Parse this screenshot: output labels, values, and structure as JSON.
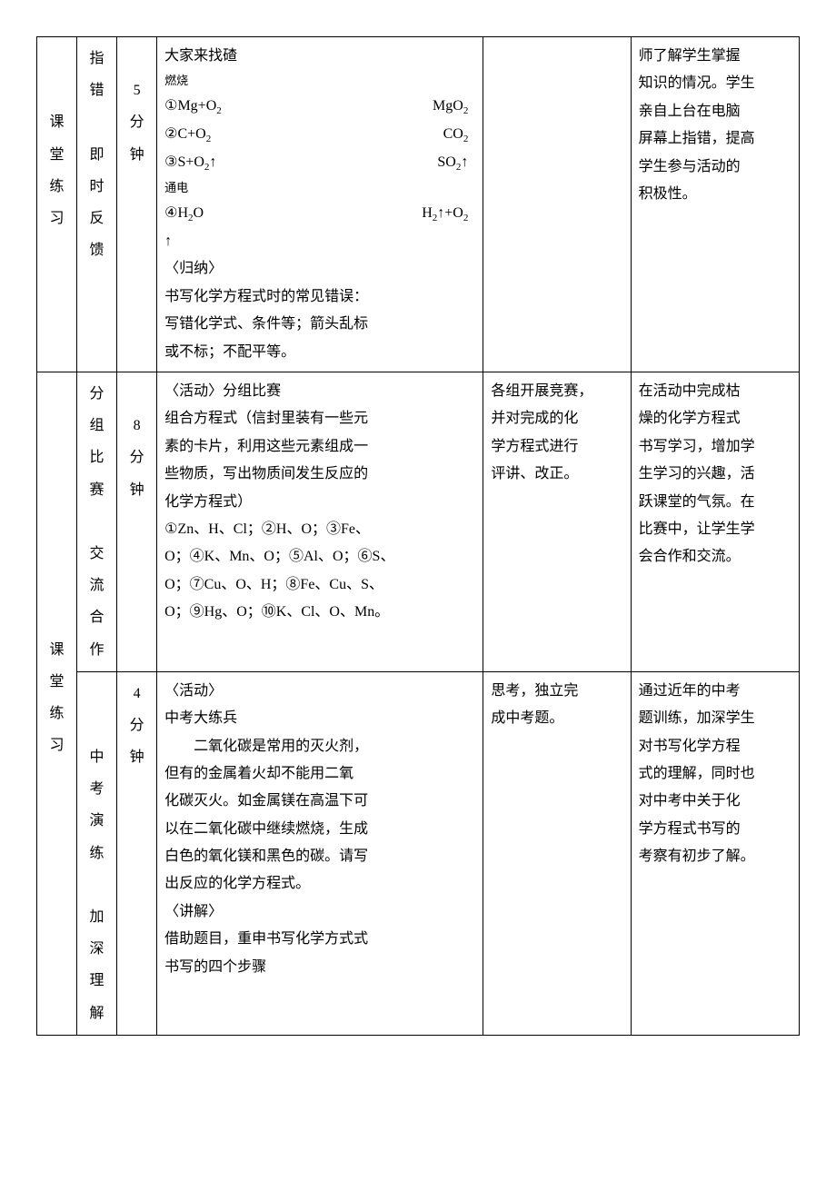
{
  "row1": {
    "sideA": [
      "课",
      "堂",
      "练",
      "习"
    ],
    "sideB": [
      "指",
      "错",
      "",
      "即",
      "时",
      "反",
      "馈"
    ],
    "time": [
      "5",
      "分",
      "钟"
    ],
    "c4_title": "大家来找碴",
    "c4_cond1": "燃烧",
    "c4_eq1_l": "①Mg+O",
    "c4_eq1_r": "MgO",
    "c4_eq2_l": "②C+O",
    "c4_eq2_r": "CO",
    "c4_eq3_l": "③S+O",
    "c4_eq3_r_a": "SO",
    "c4_cond2": "通电",
    "c4_eq4_l": "④H",
    "c4_eq4_r": "H",
    "c4_eq4_r2": "+O",
    "c4_arrow": "↑",
    "c4_sum_h": "〈归纳〉",
    "c4_sum_1": "书写化学方程式时的常见错误：",
    "c4_sum_2": "写错化学式、条件等；箭头乱标",
    "c4_sum_3": "或不标；不配平等。",
    "c6_1": "师了解学生掌握",
    "c6_2": "知识的情况。学生",
    "c6_3": "亲自上台在电脑",
    "c6_4": "屏幕上指错，提高",
    "c6_5": "学生参与活动的",
    "c6_6": "积极性。"
  },
  "row2": {
    "sideB": [
      "分",
      "组",
      "比",
      "赛",
      "",
      "交",
      "流",
      "合",
      "作"
    ],
    "time": [
      "8",
      "分",
      "钟"
    ],
    "c4_h": "〈活动〉分组比赛",
    "c4_1": "组合方程式（信封里装有一些元",
    "c4_2": "素的卡片，利用这些元素组成一",
    "c4_3": "些物质，写出物质间发生反应的",
    "c4_4": "化学方程式）",
    "c4_5": "①Zn、H、Cl；②H、O；③Fe、",
    "c4_6": "O；④K、Mn、O；⑤Al、O；⑥S、",
    "c4_7": "O；⑦Cu、O、H；⑧Fe、Cu、S、",
    "c4_8": "O；⑨Hg、O；⑩K、Cl、O、Mn。",
    "c5_1": "各组开展竞赛，",
    "c5_2": "并对完成的化",
    "c5_3": "学方程式进行",
    "c5_4": "评讲、改正。",
    "c6_1": "在活动中完成枯",
    "c6_2": "燥的化学方程式",
    "c6_3": "书写学习，增加学",
    "c6_4": "生学习的兴趣，活",
    "c6_5": "跃课堂的气氛。在",
    "c6_6": "比赛中，让学生学",
    "c6_7": "会合作和交流。"
  },
  "row3": {
    "sideA": [
      "课",
      "堂",
      "练",
      "习"
    ],
    "sideB": [
      "",
      "",
      "中",
      "考",
      "演",
      "练",
      "",
      "加",
      "深",
      "理",
      "解"
    ],
    "time": [
      "4",
      "分",
      "钟"
    ],
    "c4_h": "〈活动〉",
    "c4_sub": "中考大练兵",
    "c4_1": "　　二氧化碳是常用的灭火剂，",
    "c4_2": "但有的金属着火却不能用二氧",
    "c4_3": "化碳灭火。如金属镁在高温下可",
    "c4_4": "以在二氧化碳中继续燃烧，生成",
    "c4_5": "白色的氧化镁和黑色的碳。请写",
    "c4_6": "出反应的化学方程式。",
    "c4_exp_h": "〈讲解〉",
    "c4_exp_1": "借助题目，重申书写化学方式式",
    "c4_exp_2": "书写的四个步骤",
    "c5_1": "思考，独立完",
    "c5_2": "成中考题。",
    "c6_1": "通过近年的中考",
    "c6_2": "题训练，加深学生",
    "c6_3": "对书写化学方程",
    "c6_4": "式的理解，同时也",
    "c6_5": "对中考中关于化",
    "c6_6": "学方程式书写的",
    "c6_7": "考察有初步了解。"
  }
}
